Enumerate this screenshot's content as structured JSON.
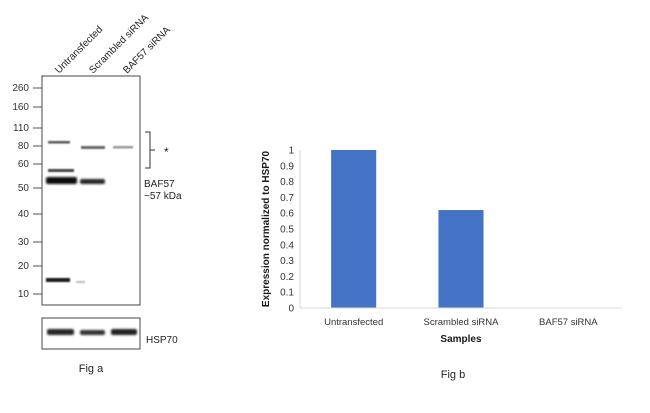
{
  "fig_a": {
    "lane_labels": [
      "Untransfected",
      "Scrambled siRNA",
      "BAF57 siRNA"
    ],
    "mw_markers": [
      "260",
      "160",
      "110",
      "80",
      "60",
      "50",
      "40",
      "30",
      "20",
      "10"
    ],
    "asterisk": "*",
    "band_label_line1": "BAF57",
    "band_label_line2": "~57 kDa",
    "loading_control_label": "HSP70",
    "caption": "Fig a"
  },
  "fig_b": {
    "caption": "Fig b"
  },
  "chart_data": {
    "type": "bar",
    "categories": [
      "Untransfected",
      "Scrambled siRNA",
      "BAF57 siRNA"
    ],
    "values": [
      1.0,
      0.62,
      0.0
    ],
    "xlabel": "Samples",
    "ylabel": "Expression  normalized to HSP70",
    "ylim": [
      0,
      1
    ],
    "yticks": [
      "0",
      "0.1",
      "0.2",
      "0.3",
      "0.4",
      "0.5",
      "0.6",
      "0.7",
      "0.8",
      "0.9",
      "1"
    ],
    "bar_color": "#4472c4",
    "grid": false
  }
}
